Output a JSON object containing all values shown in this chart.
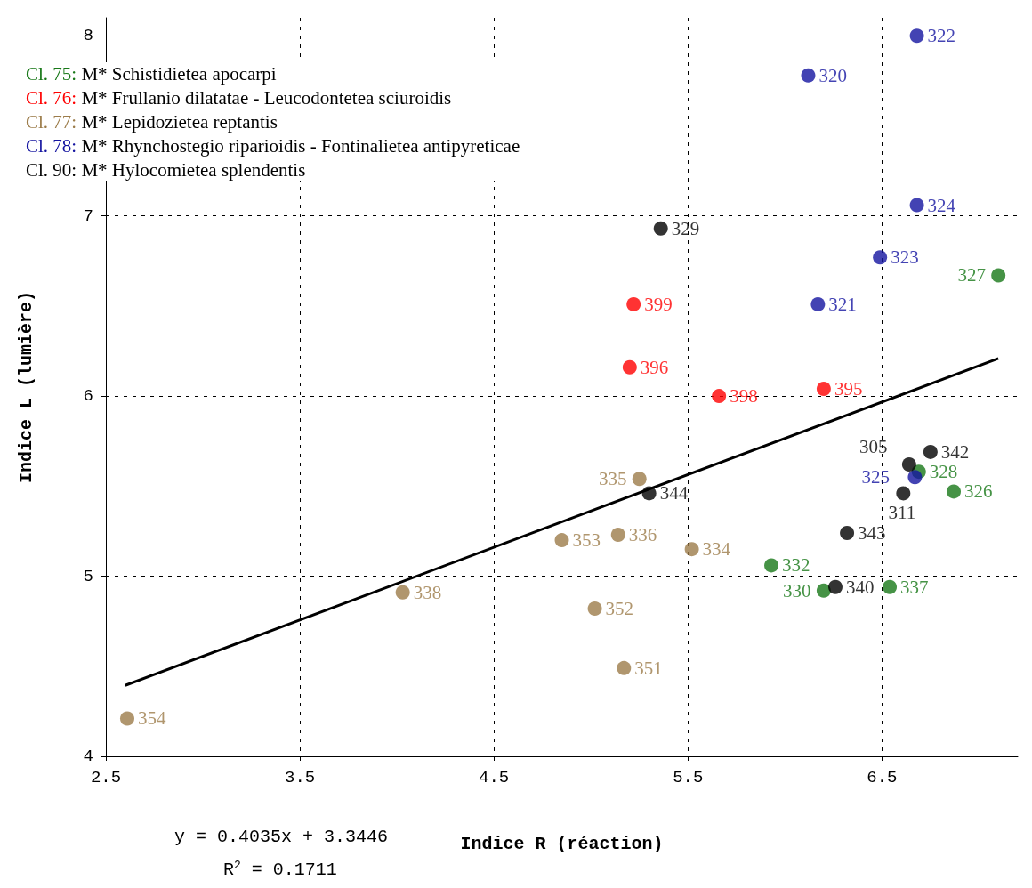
{
  "chart_data": {
    "type": "scatter",
    "xlabel": "Indice R (réaction)",
    "ylabel": "Indice L (lumière)",
    "xlim": [
      2.5,
      7.2
    ],
    "xticks": [
      2.5,
      3.5,
      4.5,
      5.5,
      6.5
    ],
    "ylim": [
      4,
      8.1
    ],
    "yticks": [
      4,
      5,
      6,
      7,
      8
    ],
    "grid": true,
    "legend": "top left",
    "marker": "circle",
    "series": [
      {
        "name": "Cl. 75: M* Schistidietea apocarpi",
        "color": "#187818",
        "x": [
          7.1,
          5.93,
          6.2,
          6.54,
          6.69,
          6.87
        ],
        "values": [
          6.67,
          5.06,
          4.92,
          4.94,
          5.58,
          5.47
        ]
      },
      {
        "name": "Cl. 76: M* Frullanio dilatatae - Leucodontetea sciuroidis",
        "color": "#ff0000",
        "x": [
          5.22,
          5.2,
          5.66,
          6.2
        ],
        "values": [
          6.51,
          6.16,
          6.0,
          6.04
        ]
      },
      {
        "name": "Cl. 77: M* Lepidozietea reptantis",
        "color": "#9c7c4a",
        "x": [
          2.61,
          4.03,
          4.85,
          5.02,
          5.14,
          5.17,
          5.25,
          5.52
        ],
        "values": [
          4.21,
          4.91,
          5.2,
          4.82,
          5.23,
          4.49,
          5.54,
          5.15
        ]
      },
      {
        "name": "Cl. 78: M* Rhynchostegio riparioidis - Fontinalietea antipyreticae",
        "color": "#1414a0",
        "x": [
          6.12,
          6.68,
          6.68,
          6.49,
          6.17,
          6.67
        ],
        "values": [
          7.78,
          8.0,
          7.06,
          6.77,
          6.51,
          5.55
        ]
      },
      {
        "name": "Cl. 90: M* Hylocomietea splendentis",
        "color": "#000000",
        "x": [
          5.36,
          6.64,
          6.75,
          6.61,
          6.32,
          6.26,
          5.3
        ],
        "values": [
          6.93,
          5.62,
          5.69,
          5.46,
          5.24,
          4.94,
          5.46
        ]
      },
      {
        "type": "line",
        "color": "#000000",
        "marker": "none",
        "x": [
          2.6,
          7.1
        ],
        "values": [
          4.394,
          6.209
        ]
      }
    ],
    "annotations": [
      {
        "text": "327",
        "x": 7.1,
        "y": 6.67
      },
      {
        "text": "332",
        "x": 5.93,
        "y": 5.06
      },
      {
        "text": "330",
        "x": 6.2,
        "y": 4.92
      },
      {
        "text": "337",
        "x": 6.54,
        "y": 4.94
      },
      {
        "text": "328",
        "x": 6.69,
        "y": 5.58
      },
      {
        "text": "326",
        "x": 6.87,
        "y": 5.47
      },
      {
        "text": "399",
        "x": 5.22,
        "y": 6.51
      },
      {
        "text": "396",
        "x": 5.2,
        "y": 6.16
      },
      {
        "text": "398",
        "x": 5.66,
        "y": 6.0
      },
      {
        "text": "395",
        "x": 6.2,
        "y": 6.04
      },
      {
        "text": "354",
        "x": 2.61,
        "y": 4.21
      },
      {
        "text": "338",
        "x": 4.03,
        "y": 4.91
      },
      {
        "text": "353",
        "x": 4.85,
        "y": 5.2
      },
      {
        "text": "352",
        "x": 5.02,
        "y": 4.82
      },
      {
        "text": "336",
        "x": 5.14,
        "y": 5.23
      },
      {
        "text": "351",
        "x": 5.17,
        "y": 4.49
      },
      {
        "text": "335",
        "x": 5.25,
        "y": 5.54
      },
      {
        "text": "334",
        "x": 5.52,
        "y": 5.15
      },
      {
        "text": "320",
        "x": 6.12,
        "y": 7.78
      },
      {
        "text": "322",
        "x": 6.68,
        "y": 8.0
      },
      {
        "text": "324",
        "x": 6.68,
        "y": 7.06
      },
      {
        "text": "323",
        "x": 6.49,
        "y": 6.77
      },
      {
        "text": "321",
        "x": 6.17,
        "y": 6.51
      },
      {
        "text": "325",
        "x": 6.67,
        "y": 5.55
      },
      {
        "text": "329",
        "x": 5.36,
        "y": 6.93
      },
      {
        "text": "305",
        "x": 6.64,
        "y": 5.62
      },
      {
        "text": "342",
        "x": 6.75,
        "y": 5.69
      },
      {
        "text": "311",
        "x": 6.61,
        "y": 5.46
      },
      {
        "text": "343",
        "x": 6.32,
        "y": 5.24
      },
      {
        "text": "340",
        "x": 6.26,
        "y": 4.94
      },
      {
        "text": "344",
        "x": 5.3,
        "y": 5.46
      },
      "y = 0.4035x + 3.3446",
      "R$^{2}$ = 0.1711"
    ]
  }
}
